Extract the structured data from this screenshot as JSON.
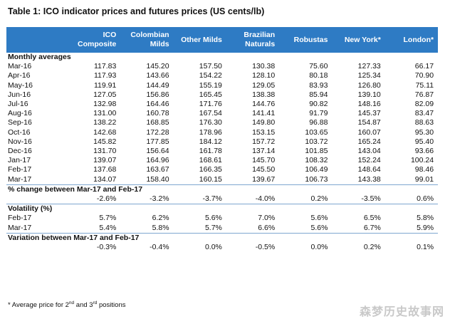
{
  "title": "Table 1: ICO indicator prices and futures prices (US cents/lb)",
  "headers": [
    "",
    "ICO Composite",
    "Colombian Milds",
    "Other Milds",
    "Brazilian Naturals",
    "Robustas",
    "New York*",
    "London*"
  ],
  "header_lines": [
    [
      "",
      ""
    ],
    [
      "ICO",
      "Composite"
    ],
    [
      "Colombian",
      "Milds"
    ],
    [
      "Other Milds",
      ""
    ],
    [
      "Brazilian",
      "Naturals"
    ],
    [
      "Robustas",
      ""
    ],
    [
      "New York*",
      ""
    ],
    [
      "London*",
      ""
    ]
  ],
  "sections": {
    "monthly": "Monthly averages",
    "change": "% change between Mar-17 and Feb-17",
    "volatility": "Volatility (%)",
    "variation": "Variation between Mar-17 and Feb-17"
  },
  "monthly_rows": [
    [
      "Mar-16",
      "117.83",
      "145.20",
      "157.50",
      "130.38",
      "75.60",
      "127.33",
      "66.17"
    ],
    [
      "Apr-16",
      "117.93",
      "143.66",
      "154.22",
      "128.10",
      "80.18",
      "125.34",
      "70.90"
    ],
    [
      "May-16",
      "119.91",
      "144.49",
      "155.19",
      "129.05",
      "83.93",
      "126.80",
      "75.11"
    ],
    [
      "Jun-16",
      "127.05",
      "156.86",
      "165.45",
      "138.38",
      "85.94",
      "139.10",
      "76.87"
    ],
    [
      "Jul-16",
      "132.98",
      "164.46",
      "171.76",
      "144.76",
      "90.82",
      "148.16",
      "82.09"
    ],
    [
      "Aug-16",
      "131.00",
      "160.78",
      "167.54",
      "141.41",
      "91.79",
      "145.37",
      "83.47"
    ],
    [
      "Sep-16",
      "138.22",
      "168.85",
      "176.30",
      "149.80",
      "96.88",
      "154.87",
      "88.63"
    ],
    [
      "Oct-16",
      "142.68",
      "172.28",
      "178.96",
      "153.15",
      "103.65",
      "160.07",
      "95.30"
    ],
    [
      "Nov-16",
      "145.82",
      "177.85",
      "184.12",
      "157.72",
      "103.72",
      "165.24",
      "95.40"
    ],
    [
      "Dec-16",
      "131.70",
      "156.64",
      "161.78",
      "137.14",
      "101.85",
      "143.04",
      "93.66"
    ],
    [
      "Jan-17",
      "139.07",
      "164.96",
      "168.61",
      "145.70",
      "108.32",
      "152.24",
      "100.24"
    ],
    [
      "Feb-17",
      "137.68",
      "163.67",
      "166.35",
      "145.50",
      "106.49",
      "148.64",
      "98.46"
    ],
    [
      "Mar-17",
      "134.07",
      "158.40",
      "160.15",
      "139.67",
      "106.73",
      "143.38",
      "99.01"
    ]
  ],
  "change_row": [
    "",
    "-2.6%",
    "-3.2%",
    "-3.7%",
    "-4.0%",
    "0.2%",
    "-3.5%",
    "0.6%"
  ],
  "volatility_rows": [
    [
      "Feb-17",
      "5.7%",
      "6.2%",
      "5.6%",
      "7.0%",
      "5.6%",
      "6.5%",
      "5.8%"
    ],
    [
      "Mar-17",
      "5.4%",
      "5.8%",
      "5.7%",
      "6.6%",
      "5.6%",
      "6.7%",
      "5.9%"
    ]
  ],
  "variation_row": [
    "",
    "-0.3%",
    "-0.4%",
    "0.0%",
    "-0.5%",
    "0.0%",
    "0.2%",
    "0.1%"
  ],
  "footnote": {
    "prefix": "* Average price for 2",
    "sup1": "nd",
    "mid": " and 3",
    "sup2": "rd",
    "suffix": " positions"
  },
  "watermark": "森梦历史故事网",
  "colors": {
    "header_bg": "#2e7bc4",
    "header_text": "#ffffff",
    "section_rule": "#7fa7d0"
  }
}
